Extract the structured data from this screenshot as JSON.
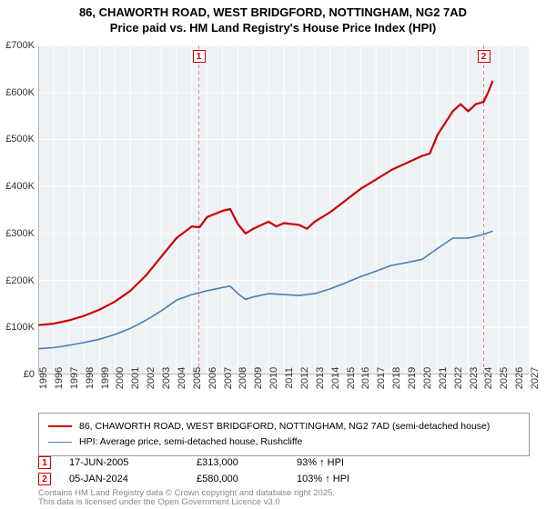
{
  "title_line1": "86, CHAWORTH ROAD, WEST BRIDGFORD, NOTTINGHAM, NG2 7AD",
  "title_line2": "Price paid vs. HM Land Registry's House Price Index (HPI)",
  "chart": {
    "type": "line",
    "background_color": "#ffffff",
    "plot_background_color": "#eef2f5",
    "grid_color": "#ffffff",
    "axis_color": "#808080",
    "x_axis": {
      "min": 1995,
      "max": 2027,
      "tick_step": 1,
      "ticks": [
        1995,
        1996,
        1997,
        1998,
        1999,
        2000,
        2001,
        2002,
        2003,
        2004,
        2005,
        2006,
        2007,
        2008,
        2009,
        2010,
        2011,
        2012,
        2013,
        2014,
        2015,
        2016,
        2017,
        2018,
        2019,
        2020,
        2021,
        2022,
        2023,
        2024,
        2025,
        2026,
        2027
      ],
      "label_fontsize": 11,
      "label_rotation": -90
    },
    "y_axis": {
      "min": 0,
      "max": 700000,
      "tick_step": 100000,
      "ticks": [
        0,
        100000,
        200000,
        300000,
        400000,
        500000,
        600000,
        700000
      ],
      "tick_labels": [
        "£0",
        "£100K",
        "£200K",
        "£300K",
        "£400K",
        "£500K",
        "£600K",
        "£700K"
      ],
      "label_fontsize": 11
    },
    "series": [
      {
        "name": "price_paid",
        "label": "86, CHAWORTH ROAD, WEST BRIDGFORD, NOTTINGHAM, NG2 7AD (semi-detached house)",
        "color": "#cc0000",
        "line_width": 2.2,
        "data": [
          [
            1995,
            105000
          ],
          [
            1996,
            108000
          ],
          [
            1997,
            115000
          ],
          [
            1998,
            125000
          ],
          [
            1999,
            138000
          ],
          [
            2000,
            155000
          ],
          [
            2001,
            178000
          ],
          [
            2002,
            210000
          ],
          [
            2003,
            250000
          ],
          [
            2004,
            290000
          ],
          [
            2005,
            315000
          ],
          [
            2005.5,
            313000
          ],
          [
            2006,
            335000
          ],
          [
            2007,
            348000
          ],
          [
            2007.5,
            352000
          ],
          [
            2008,
            320000
          ],
          [
            2008.5,
            300000
          ],
          [
            2009,
            310000
          ],
          [
            2010,
            325000
          ],
          [
            2010.5,
            315000
          ],
          [
            2011,
            322000
          ],
          [
            2012,
            318000
          ],
          [
            2012.5,
            310000
          ],
          [
            2013,
            325000
          ],
          [
            2014,
            345000
          ],
          [
            2015,
            370000
          ],
          [
            2016,
            395000
          ],
          [
            2017,
            415000
          ],
          [
            2018,
            435000
          ],
          [
            2019,
            450000
          ],
          [
            2020,
            465000
          ],
          [
            2020.5,
            470000
          ],
          [
            2021,
            510000
          ],
          [
            2022,
            560000
          ],
          [
            2022.5,
            575000
          ],
          [
            2023,
            560000
          ],
          [
            2023.5,
            575000
          ],
          [
            2024,
            580000
          ],
          [
            2024.3,
            600000
          ],
          [
            2024.6,
            625000
          ]
        ]
      },
      {
        "name": "hpi",
        "label": "HPI: Average price, semi-detached house, Rushcliffe",
        "color": "#4a7db5",
        "line_width": 1.6,
        "data": [
          [
            1995,
            55000
          ],
          [
            1996,
            57000
          ],
          [
            1997,
            62000
          ],
          [
            1998,
            68000
          ],
          [
            1999,
            75000
          ],
          [
            2000,
            85000
          ],
          [
            2001,
            98000
          ],
          [
            2002,
            115000
          ],
          [
            2003,
            135000
          ],
          [
            2004,
            158000
          ],
          [
            2005,
            170000
          ],
          [
            2006,
            178000
          ],
          [
            2007,
            185000
          ],
          [
            2007.5,
            188000
          ],
          [
            2008,
            172000
          ],
          [
            2008.5,
            160000
          ],
          [
            2009,
            165000
          ],
          [
            2010,
            172000
          ],
          [
            2011,
            170000
          ],
          [
            2012,
            168000
          ],
          [
            2013,
            172000
          ],
          [
            2014,
            182000
          ],
          [
            2015,
            195000
          ],
          [
            2016,
            208000
          ],
          [
            2017,
            220000
          ],
          [
            2018,
            232000
          ],
          [
            2019,
            238000
          ],
          [
            2020,
            245000
          ],
          [
            2021,
            268000
          ],
          [
            2022,
            290000
          ],
          [
            2023,
            290000
          ],
          [
            2024,
            298000
          ],
          [
            2024.6,
            305000
          ]
        ]
      }
    ],
    "sale_markers": [
      {
        "n": "1",
        "x": 2005.46,
        "date": "17-JUN-2005",
        "price": "£313,000",
        "hpi_pct": "93% ↑ HPI",
        "color": "#cc0000"
      },
      {
        "n": "2",
        "x": 2024.01,
        "date": "05-JAN-2024",
        "price": "£580,000",
        "hpi_pct": "103% ↑ HPI",
        "color": "#cc0000"
      }
    ],
    "vline_color": "#d88",
    "vline_dash": "4 3"
  },
  "footer_line1": "Contains HM Land Registry data © Crown copyright and database right 2025.",
  "footer_line2": "This data is licensed under the Open Government Licence v3.0"
}
